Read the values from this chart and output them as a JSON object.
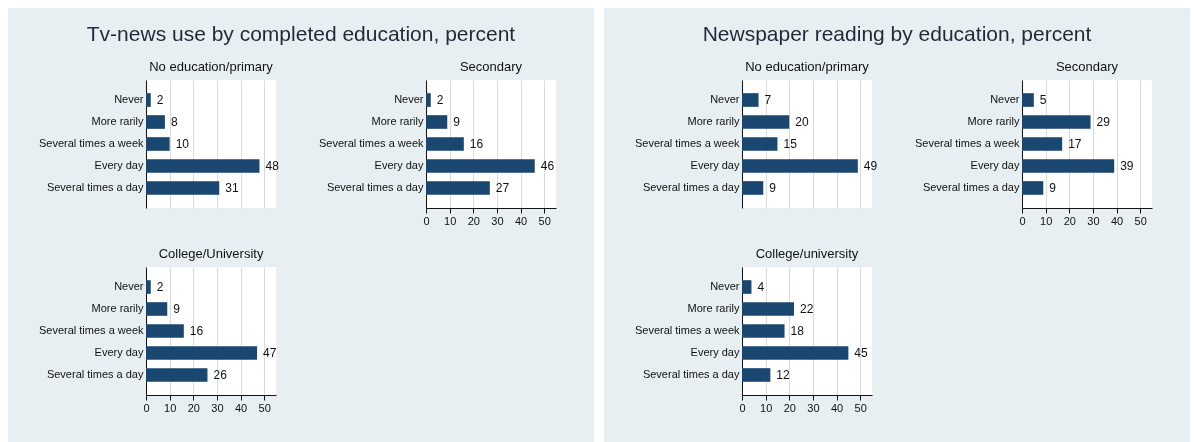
{
  "chart_data": [
    {
      "type": "bar",
      "orientation": "horizontal",
      "title": "Tv-news use by completed education, percent",
      "subtitle": "No education/primary",
      "categories": [
        "Never",
        "More rarily",
        "Several times a week",
        "Every day",
        "Several times a day"
      ],
      "values": [
        2,
        8,
        10,
        48,
        31
      ],
      "color": "#1a476f",
      "xlim": [
        0,
        55
      ],
      "xticks": [
        0,
        10,
        20,
        30,
        40,
        50
      ],
      "grid": "x",
      "data_labels": true,
      "tick_labels": "y"
    },
    {
      "type": "bar",
      "orientation": "horizontal",
      "subtitle": "Secondary",
      "categories": [
        "Never",
        "More rarily",
        "Several times a week",
        "Every day",
        "Several times a day"
      ],
      "values": [
        2,
        9,
        16,
        46,
        27
      ],
      "color": "#1a476f",
      "xlim": [
        0,
        55
      ],
      "xticks": [
        0,
        10,
        20,
        30,
        40,
        50
      ],
      "grid": "x",
      "data_labels": true
    },
    {
      "type": "bar",
      "orientation": "horizontal",
      "subtitle": "College/University",
      "categories": [
        "Never",
        "More rarily",
        "Several times a week",
        "Every day",
        "Several times a day"
      ],
      "values": [
        2,
        9,
        16,
        47,
        26
      ],
      "color": "#1a476f",
      "xlim": [
        0,
        55
      ],
      "xticks": [
        0,
        10,
        20,
        30,
        40,
        50
      ],
      "grid": "x",
      "data_labels": true
    },
    {
      "type": "bar",
      "orientation": "horizontal",
      "title": "Newspaper reading by education, percent",
      "subtitle": "No education/primary",
      "categories": [
        "Never",
        "More rarily",
        "Several times a week",
        "Every day",
        "Several times a day"
      ],
      "values": [
        7,
        20,
        15,
        49,
        9
      ],
      "color": "#1a476f",
      "xlim": [
        0,
        55
      ],
      "xticks": [
        0,
        10,
        20,
        30,
        40,
        50
      ],
      "grid": "x",
      "data_labels": true,
      "tick_labels": "y"
    },
    {
      "type": "bar",
      "orientation": "horizontal",
      "subtitle": "Secondary",
      "categories": [
        "Never",
        "More rarily",
        "Several times a week",
        "Every day",
        "Several times a day"
      ],
      "values": [
        5,
        29,
        17,
        39,
        9
      ],
      "color": "#1a476f",
      "xlim": [
        0,
        55
      ],
      "xticks": [
        0,
        10,
        20,
        30,
        40,
        50
      ],
      "grid": "x",
      "data_labels": true
    },
    {
      "type": "bar",
      "orientation": "horizontal",
      "subtitle": "College/university",
      "categories": [
        "Never",
        "More rarily",
        "Several times a week",
        "Every day",
        "Several times a day"
      ],
      "values": [
        4,
        22,
        18,
        45,
        12
      ],
      "color": "#1a476f",
      "xlim": [
        0,
        55
      ],
      "xticks": [
        0,
        10,
        20,
        30,
        40,
        50
      ],
      "grid": "x",
      "data_labels": true
    }
  ]
}
